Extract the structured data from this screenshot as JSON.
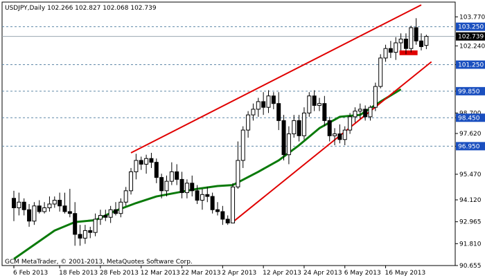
{
  "header": {
    "symbol_line": "USDJPY,Daily  102.266 102.827 102.068 102.739"
  },
  "copyright": "GCM MetaTrader, © 2001-2013, MetaQuotes Software Corp.",
  "colors": {
    "up_candle_fill": "#ffffff",
    "down_candle_fill": "#000000",
    "moving_average": "#0a7a0a",
    "trendline": "#e00000",
    "level_box": "#1a4fbf",
    "current_price_box": "#000000",
    "grid": "#5f87a8"
  },
  "chart_data": {
    "type": "candlestick",
    "ylim": [
      90.655,
      104.55
    ],
    "y_ticks": [
      "103.770",
      "102.240",
      "101.250",
      "99.850",
      "98.700",
      "98.450",
      "97.620",
      "96.950",
      "95.470",
      "94.120",
      "92.965",
      "91.810",
      "90.655"
    ],
    "x_ticks": [
      {
        "label": "6 Feb 2013",
        "index": 0
      },
      {
        "label": "18 Feb 2013",
        "index": 9
      },
      {
        "label": "28 Feb 2013",
        "index": 17
      },
      {
        "label": "12 Mar 2013",
        "index": 25
      },
      {
        "label": "22 Mar 2013",
        "index": 33
      },
      {
        "label": "2 Apr 2013",
        "index": 41
      },
      {
        "label": "12 Apr 2013",
        "index": 49
      },
      {
        "label": "24 Apr 2013",
        "index": 57
      },
      {
        "label": "6 May 2013",
        "index": 65
      },
      {
        "label": "16 May 2013",
        "index": 73
      }
    ],
    "level_lines": [
      {
        "label": "103.250",
        "value": 103.25,
        "box": true
      },
      {
        "label": "101.250",
        "value": 101.25,
        "box": true
      },
      {
        "label": "99.850",
        "value": 99.85,
        "box": true
      },
      {
        "label": "98.450",
        "value": 98.45,
        "box": true
      },
      {
        "label": "96.950",
        "value": 96.95,
        "box": true
      }
    ],
    "current_price": {
      "label": "102.739",
      "value": 102.739
    },
    "candles": [
      {
        "o": 94.2,
        "h": 94.6,
        "l": 93.0,
        "c": 93.7
      },
      {
        "o": 93.7,
        "h": 94.5,
        "l": 93.3,
        "c": 94.0
      },
      {
        "o": 94.0,
        "h": 94.2,
        "l": 93.3,
        "c": 93.6
      },
      {
        "o": 93.6,
        "h": 93.9,
        "l": 92.7,
        "c": 93.0
      },
      {
        "o": 93.0,
        "h": 94.0,
        "l": 92.8,
        "c": 93.8
      },
      {
        "o": 93.8,
        "h": 94.1,
        "l": 93.4,
        "c": 93.5
      },
      {
        "o": 93.5,
        "h": 94.0,
        "l": 93.4,
        "c": 93.7
      },
      {
        "o": 93.7,
        "h": 94.3,
        "l": 93.5,
        "c": 93.9
      },
      {
        "o": 93.9,
        "h": 94.3,
        "l": 93.7,
        "c": 94.1
      },
      {
        "o": 94.1,
        "h": 94.5,
        "l": 93.5,
        "c": 93.8
      },
      {
        "o": 93.8,
        "h": 94.5,
        "l": 93.4,
        "c": 93.5
      },
      {
        "o": 93.5,
        "h": 94.7,
        "l": 93.2,
        "c": 93.4
      },
      {
        "o": 93.4,
        "h": 94.0,
        "l": 91.7,
        "c": 92.3
      },
      {
        "o": 92.3,
        "h": 92.8,
        "l": 91.7,
        "c": 92.1
      },
      {
        "o": 92.1,
        "h": 92.8,
        "l": 91.8,
        "c": 92.5
      },
      {
        "o": 92.5,
        "h": 92.7,
        "l": 92.1,
        "c": 92.4
      },
      {
        "o": 92.4,
        "h": 93.4,
        "l": 92.2,
        "c": 93.1
      },
      {
        "o": 93.1,
        "h": 93.6,
        "l": 92.8,
        "c": 93.3
      },
      {
        "o": 93.3,
        "h": 93.6,
        "l": 93.0,
        "c": 93.2
      },
      {
        "o": 93.2,
        "h": 93.8,
        "l": 92.9,
        "c": 93.6
      },
      {
        "o": 93.6,
        "h": 94.0,
        "l": 93.3,
        "c": 93.4
      },
      {
        "o": 93.4,
        "h": 94.2,
        "l": 93.2,
        "c": 94.0
      },
      {
        "o": 94.0,
        "h": 94.8,
        "l": 93.8,
        "c": 94.6
      },
      {
        "o": 94.6,
        "h": 95.8,
        "l": 94.4,
        "c": 95.6
      },
      {
        "o": 95.6,
        "h": 96.55,
        "l": 95.2,
        "c": 96.2
      },
      {
        "o": 96.2,
        "h": 96.4,
        "l": 95.7,
        "c": 96.0
      },
      {
        "o": 96.0,
        "h": 96.5,
        "l": 95.5,
        "c": 96.3
      },
      {
        "o": 96.3,
        "h": 96.6,
        "l": 95.8,
        "c": 96.1
      },
      {
        "o": 96.1,
        "h": 96.3,
        "l": 95.0,
        "c": 95.3
      },
      {
        "o": 95.3,
        "h": 95.5,
        "l": 94.2,
        "c": 94.6
      },
      {
        "o": 94.6,
        "h": 95.4,
        "l": 94.3,
        "c": 95.1
      },
      {
        "o": 95.1,
        "h": 96.1,
        "l": 94.9,
        "c": 95.6
      },
      {
        "o": 95.6,
        "h": 96.0,
        "l": 94.9,
        "c": 95.2
      },
      {
        "o": 95.2,
        "h": 95.6,
        "l": 94.2,
        "c": 94.5
      },
      {
        "o": 94.5,
        "h": 95.2,
        "l": 94.2,
        "c": 95.0
      },
      {
        "o": 95.0,
        "h": 95.4,
        "l": 94.3,
        "c": 94.6
      },
      {
        "o": 94.6,
        "h": 94.9,
        "l": 93.9,
        "c": 94.1
      },
      {
        "o": 94.1,
        "h": 94.7,
        "l": 93.6,
        "c": 94.4
      },
      {
        "o": 94.4,
        "h": 94.8,
        "l": 94.0,
        "c": 94.3
      },
      {
        "o": 94.3,
        "h": 94.5,
        "l": 93.4,
        "c": 93.6
      },
      {
        "o": 93.6,
        "h": 94.0,
        "l": 93.3,
        "c": 93.5
      },
      {
        "o": 93.5,
        "h": 93.8,
        "l": 92.8,
        "c": 93.1
      },
      {
        "o": 93.1,
        "h": 93.3,
        "l": 92.8,
        "c": 92.9
      },
      {
        "o": 92.9,
        "h": 95.0,
        "l": 92.9,
        "c": 94.8
      },
      {
        "o": 94.8,
        "h": 97.2,
        "l": 94.7,
        "c": 96.2
      },
      {
        "o": 96.2,
        "h": 98.0,
        "l": 95.8,
        "c": 97.8
      },
      {
        "o": 97.8,
        "h": 98.8,
        "l": 97.4,
        "c": 98.6
      },
      {
        "o": 98.6,
        "h": 99.2,
        "l": 98.3,
        "c": 98.9
      },
      {
        "o": 98.9,
        "h": 99.5,
        "l": 98.5,
        "c": 99.3
      },
      {
        "o": 99.3,
        "h": 99.8,
        "l": 98.6,
        "c": 99.0
      },
      {
        "o": 99.0,
        "h": 99.9,
        "l": 98.7,
        "c": 99.6
      },
      {
        "o": 99.6,
        "h": 99.8,
        "l": 98.9,
        "c": 99.2
      },
      {
        "o": 99.2,
        "h": 99.8,
        "l": 97.8,
        "c": 98.3
      },
      {
        "o": 98.3,
        "h": 98.6,
        "l": 96.2,
        "c": 96.5
      },
      {
        "o": 96.5,
        "h": 98.0,
        "l": 96.0,
        "c": 97.6
      },
      {
        "o": 97.6,
        "h": 98.6,
        "l": 97.4,
        "c": 98.3
      },
      {
        "o": 98.3,
        "h": 98.6,
        "l": 97.2,
        "c": 97.5
      },
      {
        "o": 97.5,
        "h": 99.0,
        "l": 97.3,
        "c": 98.7
      },
      {
        "o": 98.7,
        "h": 99.8,
        "l": 98.5,
        "c": 99.6
      },
      {
        "o": 99.6,
        "h": 99.9,
        "l": 98.8,
        "c": 99.1
      },
      {
        "o": 99.1,
        "h": 99.5,
        "l": 98.8,
        "c": 99.2
      },
      {
        "o": 99.2,
        "h": 99.6,
        "l": 98.0,
        "c": 98.3
      },
      {
        "o": 98.3,
        "h": 98.5,
        "l": 97.2,
        "c": 97.5
      },
      {
        "o": 97.5,
        "h": 97.9,
        "l": 97.0,
        "c": 97.6
      },
      {
        "o": 97.6,
        "h": 98.1,
        "l": 97.1,
        "c": 97.3
      },
      {
        "o": 97.3,
        "h": 98.0,
        "l": 97.0,
        "c": 97.8
      },
      {
        "o": 97.8,
        "h": 98.7,
        "l": 97.6,
        "c": 98.5
      },
      {
        "o": 98.5,
        "h": 99.0,
        "l": 98.2,
        "c": 98.8
      },
      {
        "o": 98.8,
        "h": 99.2,
        "l": 98.4,
        "c": 98.9
      },
      {
        "o": 98.9,
        "h": 99.1,
        "l": 98.3,
        "c": 98.5
      },
      {
        "o": 98.5,
        "h": 99.1,
        "l": 98.3,
        "c": 99.0
      },
      {
        "o": 99.0,
        "h": 100.3,
        "l": 98.8,
        "c": 100.1
      },
      {
        "o": 100.1,
        "h": 101.8,
        "l": 100.0,
        "c": 101.6
      },
      {
        "o": 101.6,
        "h": 102.3,
        "l": 101.4,
        "c": 102.1
      },
      {
        "o": 102.1,
        "h": 102.5,
        "l": 101.6,
        "c": 101.9
      },
      {
        "o": 101.9,
        "h": 102.7,
        "l": 101.5,
        "c": 102.4
      },
      {
        "o": 102.4,
        "h": 102.9,
        "l": 102.0,
        "c": 102.6
      },
      {
        "o": 102.6,
        "h": 102.9,
        "l": 101.8,
        "c": 102.1
      },
      {
        "o": 102.1,
        "h": 103.3,
        "l": 101.9,
        "c": 103.2
      },
      {
        "o": 103.2,
        "h": 103.7,
        "l": 102.3,
        "c": 102.5
      },
      {
        "o": 102.5,
        "h": 102.9,
        "l": 102.0,
        "c": 102.2
      },
      {
        "o": 102.266,
        "h": 102.827,
        "l": 102.068,
        "c": 102.739
      }
    ],
    "moving_average": [
      {
        "i": 0,
        "v": 91.0
      },
      {
        "i": 8,
        "v": 92.5
      },
      {
        "i": 12,
        "v": 92.95
      },
      {
        "i": 16,
        "v": 93.05
      },
      {
        "i": 20,
        "v": 93.55
      },
      {
        "i": 24,
        "v": 93.95
      },
      {
        "i": 28,
        "v": 94.3
      },
      {
        "i": 32,
        "v": 94.5
      },
      {
        "i": 36,
        "v": 94.7
      },
      {
        "i": 40,
        "v": 94.85
      },
      {
        "i": 43,
        "v": 94.9
      },
      {
        "i": 48,
        "v": 95.6
      },
      {
        "i": 52,
        "v": 96.2
      },
      {
        "i": 56,
        "v": 97.0
      },
      {
        "i": 60,
        "v": 97.9
      },
      {
        "i": 64,
        "v": 98.5
      },
      {
        "i": 68,
        "v": 98.6
      },
      {
        "i": 72,
        "v": 99.3
      },
      {
        "i": 76,
        "v": 99.95
      }
    ],
    "trendlines": [
      {
        "from": {
          "i": 23,
          "v": 96.6
        },
        "to": {
          "i": 80,
          "v": 104.4
        }
      },
      {
        "from": {
          "i": 43,
          "v": 92.95
        },
        "to": {
          "i": 82,
          "v": 101.4
        }
      }
    ],
    "marker_zone": {
      "i_from": 76,
      "i_to": 79,
      "v_top": 102.0,
      "v_bottom": 101.75
    }
  }
}
